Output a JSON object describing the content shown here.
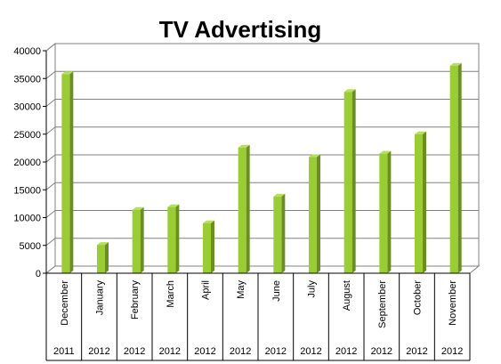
{
  "chart_data": {
    "type": "bar",
    "title": "TV Advertising",
    "categories": [
      {
        "month": "December",
        "year": "2011"
      },
      {
        "month": "January",
        "year": "2012"
      },
      {
        "month": "February",
        "year": "2012"
      },
      {
        "month": "March",
        "year": "2012"
      },
      {
        "month": "April",
        "year": "2012"
      },
      {
        "month": "May",
        "year": "2012"
      },
      {
        "month": "June",
        "year": "2012"
      },
      {
        "month": "July",
        "year": "2012"
      },
      {
        "month": "August",
        "year": "2012"
      },
      {
        "month": "September",
        "year": "2012"
      },
      {
        "month": "October",
        "year": "2012"
      },
      {
        "month": "November",
        "year": "2012"
      }
    ],
    "values": [
      35800,
      5100,
      11400,
      11900,
      9000,
      22600,
      13800,
      20900,
      32600,
      21500,
      25000,
      37300
    ],
    "ylim": [
      0,
      40000
    ],
    "yticks": [
      "0",
      "5000",
      "10000",
      "15000",
      "20000",
      "25000",
      "30000",
      "35000",
      "40000"
    ],
    "grid": true,
    "legend": "none",
    "colors": {
      "bar_front": "#9acd32",
      "bar_side": "#6b8e23",
      "bar_top": "#b5e05a",
      "grid": "#808080",
      "wall": "#ffffff"
    }
  }
}
